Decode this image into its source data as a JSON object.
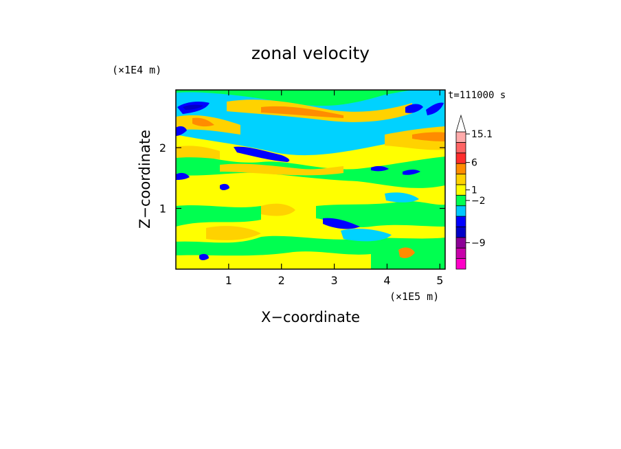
{
  "chart_data": {
    "type": "heatmap",
    "title": "zonal velocity",
    "xlabel": "X−coordinate",
    "ylabel": "Z−coordinate",
    "x_unit": "(×1E5 m)",
    "y_unit": "(×1E4 m)",
    "time_label": "t=111000 s",
    "xlim": [
      0,
      5.1
    ],
    "ylim": [
      0,
      2.95
    ],
    "x_ticks": [
      {
        "value": 1,
        "label": "1"
      },
      {
        "value": 2,
        "label": "2"
      },
      {
        "value": 3,
        "label": "3"
      },
      {
        "value": 4,
        "label": "4"
      },
      {
        "value": 5,
        "label": "5"
      }
    ],
    "y_ticks": [
      {
        "value": 1,
        "label": "1"
      },
      {
        "value": 2,
        "label": "2"
      }
    ],
    "colorbar": {
      "levels_bottom_to_top": [
        {
          "color": "#ff00c8"
        },
        {
          "color": "#c800aa"
        },
        {
          "color": "#8c0096"
        },
        {
          "color": "#0000c8"
        },
        {
          "color": "#0000ff"
        },
        {
          "color": "#00c8ff"
        },
        {
          "color": "#00ff50"
        },
        {
          "color": "#ffff00"
        },
        {
          "color": "#ffd200"
        },
        {
          "color": "#ff8c00"
        },
        {
          "color": "#ff2d2d"
        },
        {
          "color": "#ff6464"
        },
        {
          "color": "#ffaaaa"
        },
        {
          "color": "#ffffff"
        }
      ],
      "labels": [
        {
          "value": "15.1",
          "at_level": 12.8
        },
        {
          "value": "6",
          "at_level": 10.1
        },
        {
          "value": "1",
          "at_level": 7.5
        },
        {
          "value": "−2",
          "at_level": 6.5
        },
        {
          "value": "−9",
          "at_level": 2.5
        }
      ]
    },
    "colors": {
      "yellow": "#ffff00",
      "gold": "#ffd200",
      "orange": "#ff8c00",
      "red": "#ff2d2d",
      "green": "#00ff50",
      "cyan": "#00d2ff",
      "blue": "#0000ff",
      "darkblue": "#0000c8",
      "magenta": "#c800aa"
    }
  }
}
